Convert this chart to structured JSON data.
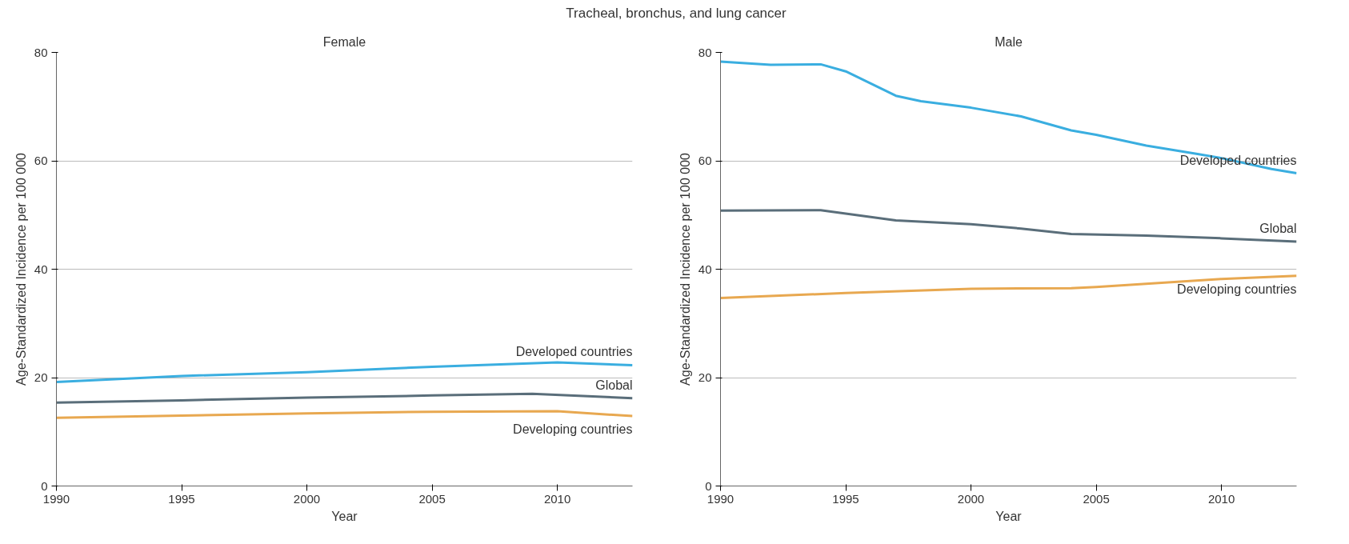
{
  "chart_data": [
    {
      "type": "line",
      "title": "Tracheal, bronchus, and lung cancer",
      "subtitle": "Female",
      "xlabel": "Year",
      "ylabel": "Age-Standardized Incidence per 100 000",
      "xlim": [
        1990,
        2013
      ],
      "xticks": [
        1990,
        1995,
        2000,
        2005,
        2010
      ],
      "ylim": [
        0,
        80
      ],
      "yticks": [
        0,
        20,
        40,
        60,
        80
      ],
      "grid": "y",
      "line_style": "solid",
      "marker": "none",
      "series": [
        {
          "name": "Developed countries",
          "color": "#3aaee0",
          "x": [
            1990,
            1995,
            2000,
            2005,
            2010,
            2013
          ],
          "values": [
            19.2,
            20.3,
            21.0,
            22.0,
            22.8,
            22.3
          ]
        },
        {
          "name": "Global",
          "color": "#5a6e7a",
          "x": [
            1990,
            1995,
            2000,
            2005,
            2009,
            2013
          ],
          "values": [
            15.4,
            15.8,
            16.3,
            16.7,
            17.0,
            16.2
          ]
        },
        {
          "name": "Developing countries",
          "color": "#e8a850",
          "x": [
            1990,
            1995,
            2000,
            2005,
            2010,
            2013
          ],
          "values": [
            12.6,
            13.0,
            13.4,
            13.7,
            13.8,
            12.9
          ]
        }
      ]
    },
    {
      "type": "line",
      "subtitle": "Male",
      "xlabel": "Year",
      "ylabel": "Age-Standardized Incidence per 100 000",
      "xlim": [
        1990,
        2013
      ],
      "xticks": [
        1990,
        1995,
        2000,
        2005,
        2010
      ],
      "ylim": [
        0,
        80
      ],
      "yticks": [
        0,
        20,
        40,
        60,
        80
      ],
      "grid": "y",
      "line_style": "solid",
      "marker": "none",
      "series": [
        {
          "name": "Developed countries",
          "color": "#3aaee0",
          "x": [
            1990,
            1992,
            1994,
            1995,
            1997,
            1998,
            2000,
            2002,
            2004,
            2005,
            2007,
            2009,
            2010,
            2012,
            2013
          ],
          "values": [
            78.3,
            77.7,
            77.8,
            76.5,
            72.0,
            71.0,
            69.8,
            68.2,
            65.6,
            64.8,
            62.8,
            61.3,
            60.5,
            58.5,
            57.7
          ]
        },
        {
          "name": "Global",
          "color": "#5a6e7a",
          "x": [
            1990,
            1994,
            1997,
            2000,
            2002,
            2004,
            2007,
            2010,
            2013
          ],
          "values": [
            50.8,
            50.9,
            49.0,
            48.3,
            47.5,
            46.5,
            46.2,
            45.7,
            45.1
          ]
        },
        {
          "name": "Developing countries",
          "color": "#e8a850",
          "x": [
            1990,
            1995,
            2000,
            2004,
            2005,
            2010,
            2013
          ],
          "values": [
            34.7,
            35.6,
            36.4,
            36.5,
            36.7,
            38.2,
            38.8
          ]
        }
      ]
    }
  ]
}
